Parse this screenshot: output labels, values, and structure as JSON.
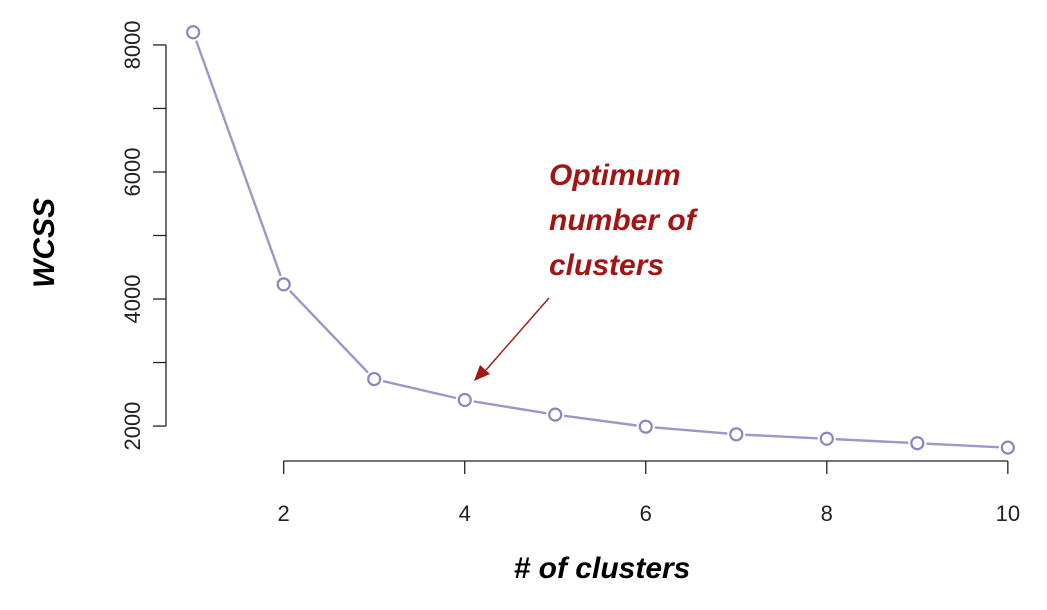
{
  "chart_data": {
    "type": "line",
    "xlabel": "# of clusters",
    "ylabel": "WCSS",
    "x": [
      1,
      2,
      3,
      4,
      5,
      6,
      7,
      8,
      9,
      10
    ],
    "series": [
      {
        "values": [
          8200,
          4230,
          2740,
          2410,
          2180,
          1990,
          1870,
          1800,
          1730,
          1660
        ]
      }
    ],
    "xlim": [
      0.7,
      10.3
    ],
    "ylim": [
      1450,
      8550
    ],
    "xticks": [
      2,
      4,
      6,
      8,
      10
    ],
    "yticks": [
      2000,
      3000,
      4000,
      5000,
      6000,
      7000,
      8000
    ],
    "ytick_labels": [
      "2000",
      "",
      "4000",
      "",
      "6000",
      "",
      "8000"
    ],
    "grid": false,
    "annotation": {
      "lines": [
        "Optimum",
        "number of",
        "clusters"
      ],
      "points_to": {
        "x": 4,
        "y": 2410
      }
    },
    "colors": {
      "line": "#9b97c9",
      "marker_stroke": "#8a86c0",
      "annotation": "#a31515",
      "axis": "#222222"
    }
  }
}
